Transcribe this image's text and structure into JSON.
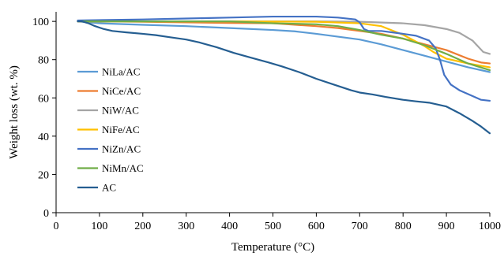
{
  "chart_data": {
    "type": "line",
    "title": "",
    "xlabel": "Temperature (°C)",
    "ylabel": "Weight loss (wt. %)",
    "xlim": [
      0,
      1000
    ],
    "ylim": [
      0,
      105
    ],
    "xticks": [
      "0",
      "100",
      "200",
      "300",
      "400",
      "500",
      "600",
      "700",
      "800",
      "900",
      "1000"
    ],
    "yticks": [
      "0",
      "20",
      "40",
      "60",
      "80",
      "100"
    ],
    "grid": false,
    "legend_position": "center-left",
    "series": [
      {
        "name": "NiLa/AC",
        "color": "#5B9BD5",
        "points": [
          [
            50,
            100
          ],
          [
            100,
            99
          ],
          [
            200,
            98.2
          ],
          [
            300,
            97.5
          ],
          [
            400,
            96.5
          ],
          [
            500,
            95.5
          ],
          [
            550,
            94.8
          ],
          [
            600,
            93.5
          ],
          [
            650,
            92
          ],
          [
            700,
            90.5
          ],
          [
            750,
            88
          ],
          [
            800,
            85
          ],
          [
            850,
            82
          ],
          [
            900,
            79
          ],
          [
            950,
            76
          ],
          [
            1000,
            73.5
          ]
        ]
      },
      {
        "name": "NiCe/AC",
        "color": "#ED7D31",
        "points": [
          [
            50,
            100
          ],
          [
            100,
            100
          ],
          [
            200,
            99.8
          ],
          [
            300,
            99.5
          ],
          [
            400,
            99.2
          ],
          [
            500,
            99
          ],
          [
            600,
            97.5
          ],
          [
            650,
            96.5
          ],
          [
            700,
            95
          ],
          [
            750,
            93.5
          ],
          [
            800,
            91
          ],
          [
            850,
            88
          ],
          [
            900,
            85
          ],
          [
            950,
            80.5
          ],
          [
            980,
            78.5
          ],
          [
            1000,
            78
          ]
        ]
      },
      {
        "name": "NiW/AC",
        "color": "#A5A5A5",
        "points": [
          [
            50,
            100
          ],
          [
            200,
            100
          ],
          [
            400,
            100
          ],
          [
            600,
            100
          ],
          [
            700,
            99.8
          ],
          [
            800,
            99
          ],
          [
            850,
            98
          ],
          [
            900,
            96
          ],
          [
            930,
            94
          ],
          [
            960,
            90
          ],
          [
            985,
            84
          ],
          [
            1000,
            83
          ]
        ]
      },
      {
        "name": "NiFe/AC",
        "color": "#FFC000",
        "points": [
          [
            50,
            100
          ],
          [
            200,
            100
          ],
          [
            400,
            100
          ],
          [
            600,
            99.8
          ],
          [
            700,
            99
          ],
          [
            750,
            97.5
          ],
          [
            800,
            93
          ],
          [
            850,
            87
          ],
          [
            870,
            84
          ],
          [
            900,
            80.5
          ],
          [
            950,
            78
          ],
          [
            1000,
            76
          ]
        ]
      },
      {
        "name": "NiZn/AC",
        "color": "#4472C4",
        "points": [
          [
            50,
            100.5
          ],
          [
            200,
            101
          ],
          [
            300,
            101.5
          ],
          [
            400,
            102
          ],
          [
            500,
            102.5
          ],
          [
            600,
            102.5
          ],
          [
            650,
            102
          ],
          [
            690,
            101
          ],
          [
            700,
            99.5
          ],
          [
            710,
            96
          ],
          [
            720,
            95
          ],
          [
            750,
            95
          ],
          [
            800,
            93.5
          ],
          [
            830,
            92.5
          ],
          [
            860,
            90
          ],
          [
            875,
            86
          ],
          [
            885,
            80
          ],
          [
            895,
            72
          ],
          [
            910,
            67
          ],
          [
            930,
            64
          ],
          [
            960,
            61
          ],
          [
            980,
            59
          ],
          [
            1000,
            58.5
          ]
        ]
      },
      {
        "name": "NiMn/AC",
        "color": "#70AD47",
        "points": [
          [
            50,
            100
          ],
          [
            200,
            100
          ],
          [
            400,
            100
          ],
          [
            500,
            99
          ],
          [
            600,
            98.5
          ],
          [
            650,
            97.5
          ],
          [
            700,
            95.5
          ],
          [
            750,
            93
          ],
          [
            800,
            91
          ],
          [
            850,
            87.5
          ],
          [
            900,
            83
          ],
          [
            950,
            78
          ],
          [
            1000,
            74.5
          ]
        ]
      },
      {
        "name": "AC",
        "color": "#255E91",
        "points": [
          [
            50,
            100
          ],
          [
            60,
            100
          ],
          [
            75,
            99
          ],
          [
            90,
            97.5
          ],
          [
            110,
            96
          ],
          [
            130,
            95
          ],
          [
            160,
            94.3
          ],
          [
            200,
            93.5
          ],
          [
            230,
            92.8
          ],
          [
            260,
            91.8
          ],
          [
            300,
            90.5
          ],
          [
            330,
            89
          ],
          [
            370,
            86.5
          ],
          [
            410,
            83.5
          ],
          [
            450,
            81
          ],
          [
            490,
            78.5
          ],
          [
            520,
            76.5
          ],
          [
            560,
            73.5
          ],
          [
            600,
            70
          ],
          [
            640,
            67
          ],
          [
            680,
            64
          ],
          [
            700,
            62.8
          ],
          [
            730,
            61.8
          ],
          [
            760,
            60.5
          ],
          [
            800,
            59
          ],
          [
            830,
            58.2
          ],
          [
            860,
            57.5
          ],
          [
            900,
            55.5
          ],
          [
            930,
            52
          ],
          [
            960,
            48
          ],
          [
            980,
            45
          ],
          [
            1000,
            41.5
          ]
        ]
      }
    ]
  }
}
